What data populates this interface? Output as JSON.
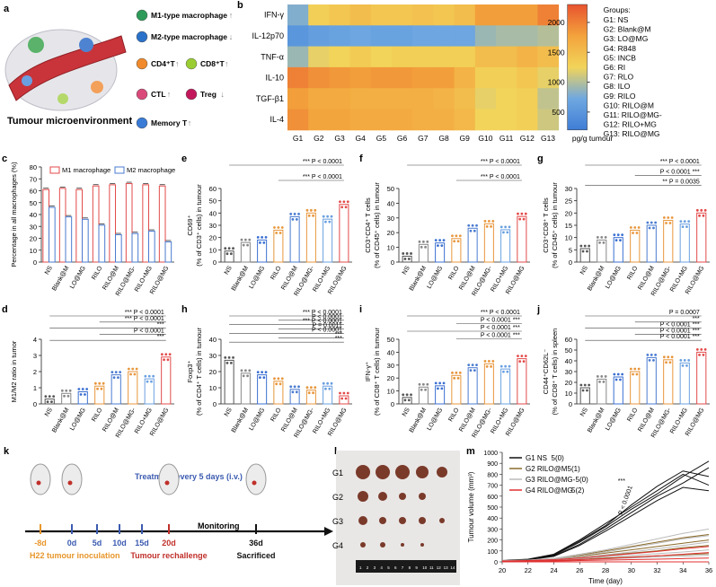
{
  "labels": {
    "a": "a",
    "b": "b",
    "c": "c",
    "d": "d",
    "e": "e",
    "f": "f",
    "g": "g",
    "h": "h",
    "i": "i",
    "j": "j",
    "k": "k",
    "l": "l",
    "m": "m"
  },
  "panel_a": {
    "title": "Tumour microenvironment",
    "cells": [
      {
        "name": "M1-type macrophage",
        "arrow": "up",
        "color": "#2e9b5a"
      },
      {
        "name": "M2-type macrophage",
        "arrow": "down",
        "color": "#2a72c9"
      },
      {
        "name": "CD4⁺T",
        "arrow": "up",
        "color": "#f08a2c"
      },
      {
        "name": "CD8⁺T",
        "arrow": "up",
        "color": "#9acd32"
      },
      {
        "name": "CTL",
        "arrow": "up",
        "color": "#d94a7a"
      },
      {
        "name": "Treg",
        "arrow": "down",
        "color": "#c2185b"
      },
      {
        "name": "Memory T",
        "arrow": "up",
        "color": "#3a7bd5"
      }
    ]
  },
  "chart_data": [
    {
      "id": "b",
      "type": "heatmap",
      "rows": [
        "IFN-γ",
        "IL-12p70",
        "TNF-α",
        "IL-10",
        "TGF-β1",
        "IL-4"
      ],
      "columns": [
        "G1",
        "G2",
        "G3",
        "G4",
        "G5",
        "G6",
        "G7",
        "G8",
        "G9",
        "G10",
        "G11",
        "G12",
        "G13"
      ],
      "values": [
        [
          800,
          1300,
          1400,
          1500,
          1400,
          1400,
          1450,
          1400,
          1500,
          1800,
          1800,
          1800,
          2000
        ],
        [
          500,
          600,
          650,
          700,
          650,
          650,
          700,
          700,
          700,
          900,
          950,
          950,
          1000
        ],
        [
          900,
          1200,
          1250,
          1350,
          1250,
          1300,
          1300,
          1300,
          1300,
          1500,
          1500,
          1600,
          1500
        ],
        [
          2000,
          1900,
          1850,
          1800,
          1850,
          1850,
          1800,
          1800,
          1600,
          1300,
          1300,
          1400,
          1200
        ],
        [
          1800,
          1700,
          1700,
          1650,
          1650,
          1650,
          1650,
          1600,
          1500,
          1200,
          1250,
          1300,
          1050
        ],
        [
          1900,
          1750,
          1750,
          1700,
          1700,
          1700,
          1650,
          1650,
          1550,
          1250,
          1250,
          1300,
          1100
        ]
      ],
      "colorbar": {
        "ticks": [
          "2000",
          "1500",
          "1000",
          "500"
        ],
        "label": "pg/g tumour",
        "min": 200,
        "max": 2300,
        "colors": [
          "#3f7dd6",
          "#6fa8e0",
          "#f2d45a",
          "#f3a33c",
          "#e8532f"
        ]
      },
      "legend_title": "Groups:",
      "legend": [
        "G1: NS",
        "G2: Blank@M",
        "G3: LO@MG",
        "G4: R848",
        "G5: INCB",
        "G6: RI",
        "G7: RLO",
        "G8: ILO",
        "G9: RILO",
        "G10: RILO@M",
        "G11: RILO@MG-",
        "G12: RILO+MG",
        "G13: RILO@MG"
      ]
    },
    {
      "id": "c",
      "type": "bar",
      "categories": [
        "NS",
        "Blank@M",
        "LO@MG",
        "RILO",
        "RILO@M",
        "RILO@MG-",
        "RILO+MG",
        "RILO@MG"
      ],
      "series": [
        {
          "name": "M1 macrophage",
          "color": "#e34a4a",
          "values": [
            61,
            62,
            61,
            64,
            65,
            66,
            65,
            64
          ]
        },
        {
          "name": "M2 macrophage",
          "color": "#4a7bd0",
          "values": [
            46,
            38,
            36,
            31,
            23,
            24,
            26,
            17
          ]
        }
      ],
      "ylabel": "Percentage in all macrophages (%)",
      "ylim": [
        0,
        80
      ],
      "yticks": [
        0,
        10,
        20,
        30,
        40,
        50,
        60,
        70,
        80
      ]
    },
    {
      "id": "d",
      "type": "bar",
      "categories": [
        "NS",
        "Blank@M",
        "LO@MG",
        "RILO",
        "RILO@M",
        "RILO@MG-",
        "RILO+MG",
        "RILO@MG"
      ],
      "values": [
        0.3,
        0.65,
        0.75,
        1.1,
        1.8,
        2.0,
        1.55,
        2.9
      ],
      "ylabel": "M1/M2 ratio in tumor",
      "ylim": [
        0,
        4
      ],
      "yticks": [
        0,
        1,
        2,
        3,
        4
      ],
      "annotations": [
        "***  P < 0.0001",
        "***  P < 0.0001",
        "***",
        "P < 0.0001",
        "***"
      ]
    },
    {
      "id": "e",
      "type": "bar",
      "categories": [
        "NS",
        "Blank@M",
        "LO@MG",
        "RILO",
        "RILO@M",
        "RILO@MG-",
        "RILO+MG",
        "RILO@MG"
      ],
      "values": [
        9,
        16,
        18,
        26,
        37,
        40,
        35,
        47
      ],
      "ylabel": "CD69⁺",
      "ylabel2": "(% of CD3⁺ cells) in tumour",
      "ylim": [
        0,
        60
      ],
      "yticks": [
        0,
        10,
        20,
        30,
        40,
        50,
        60
      ],
      "annotations": [
        "***  P < 0.0001",
        "***  P < 0.0001"
      ]
    },
    {
      "id": "f",
      "type": "bar",
      "categories": [
        "NS",
        "Blank@M",
        "LO@MG",
        "RILO",
        "RILO@M",
        "RILO@MG-",
        "RILO+MG",
        "RILO@MG"
      ],
      "values": [
        4,
        12,
        13,
        16,
        23,
        26,
        22,
        31
      ],
      "ylabel": "CD3⁺CD4⁺ T cells",
      "ylabel2": "(% of CD45⁺ cells) in tumour",
      "ylim": [
        0,
        50
      ],
      "yticks": [
        0,
        10,
        20,
        30,
        40,
        50
      ],
      "annotations": [
        "***  P < 0.0001",
        "***  P < 0.0001"
      ]
    },
    {
      "id": "g",
      "type": "bar",
      "categories": [
        "NS",
        "Blank@M",
        "LO@MG",
        "RILO",
        "RILO@M",
        "RILO@MG-",
        "RILO+MG",
        "RILO@MG"
      ],
      "values": [
        5.5,
        9,
        10,
        13,
        15,
        17,
        15.5,
        20
      ],
      "ylabel": "CD3⁺CD8⁺ T cells",
      "ylabel2": "(% of CD45⁺ cells) in tumour",
      "ylim": [
        0,
        30
      ],
      "yticks": [
        0,
        5,
        10,
        15,
        20,
        25,
        30
      ],
      "annotations": [
        "***  P < 0.0001",
        "P < 0.0001 ***",
        "**  P = 0.0035"
      ]
    },
    {
      "id": "h",
      "type": "bar",
      "categories": [
        "NS",
        "Blank@M",
        "LO@MG",
        "RILO",
        "RILO@M",
        "RILO@MG-",
        "RILO+MG",
        "RILO@MG"
      ],
      "values": [
        27,
        19,
        18,
        14,
        9,
        8.5,
        11,
        5
      ],
      "ylabel": "Foxp3⁺",
      "ylabel2": "(% of CD4⁺ T cells) in tumour",
      "ylim": [
        0,
        40
      ],
      "yticks": [
        0,
        10,
        20,
        30,
        40
      ],
      "annotations": [
        "***  P < 0.0001",
        "P < 0.0001",
        "***  P < 0.0001",
        "P = 0.0011",
        "P < 0.0001",
        "***",
        "***"
      ]
    },
    {
      "id": "i",
      "type": "bar",
      "categories": [
        "NS",
        "Blank@M",
        "LO@MG",
        "RILO",
        "RILO@M",
        "RILO@MG-",
        "RILO+MG",
        "RILO@MG"
      ],
      "values": [
        5,
        13,
        14,
        22,
        28,
        31,
        27,
        35
      ],
      "ylabel": "IFN-γ⁺",
      "ylabel2": "(% of CD8⁺ T cells) in tumour",
      "ylim": [
        0,
        50
      ],
      "yticks": [
        0,
        10,
        20,
        30,
        40,
        50
      ],
      "annotations": [
        "***  P < 0.0001",
        "P < 0.0001 ***",
        "P < 0.0001 ***",
        "P < 0.0001 ***"
      ]
    },
    {
      "id": "j",
      "type": "bar",
      "categories": [
        "NS",
        "Blank@M",
        "LO@MG",
        "RILO",
        "RILO@M",
        "RILO@MG-",
        "RILO+MG",
        "RILO@MG"
      ],
      "values": [
        15,
        23,
        25,
        30,
        43,
        41,
        38,
        48
      ],
      "ylabel": "CD44⁺CD62L⁻",
      "ylabel2": "(% of CD8⁺ T cells) in spleen",
      "ylim": [
        0,
        60
      ],
      "yticks": [
        0,
        10,
        20,
        30,
        40,
        50,
        60
      ],
      "annotations": [
        "P = 0.0007",
        "***",
        "P < 0.0001 ***",
        "P < 0.0001 ***",
        "P < 0.0001 ***"
      ]
    },
    {
      "id": "m",
      "type": "line",
      "x": [
        20,
        22,
        24,
        26,
        28,
        30,
        32,
        34,
        36
      ],
      "series": [
        {
          "name": "G1 NS",
          "cured": "5(0)",
          "color": "#111111",
          "lines": [
            [
              10,
              20,
              60,
              180,
              320,
              480,
              620,
              780,
              920
            ],
            [
              10,
              22,
              55,
              160,
              300,
              450,
              600,
              720,
              860
            ],
            [
              12,
              25,
              70,
              200,
              350,
              500,
              650,
              800,
              700
            ],
            [
              10,
              18,
              50,
              150,
              280,
              420,
              560,
              680,
              650
            ],
            [
              10,
              20,
              65,
              190,
              330,
              520,
              690,
              830,
              780
            ]
          ]
        },
        {
          "name": "G2 RILO@M",
          "cured": "5(1)",
          "color": "#8a6a2a",
          "lines": [
            [
              10,
              15,
              30,
              60,
              100,
              140,
              180,
              220,
              250
            ],
            [
              10,
              15,
              25,
              50,
              80,
              110,
              140,
              170,
              200
            ],
            [
              8,
              12,
              20,
              40,
              60,
              80,
              100,
              130,
              150
            ],
            [
              8,
              10,
              15,
              25,
              35,
              45,
              55,
              65,
              75
            ],
            [
              0,
              0,
              0,
              0,
              0,
              0,
              0,
              0,
              0
            ]
          ]
        },
        {
          "name": "G3 RILO@MG-",
          "cured": "5(0)",
          "color": "#bbbbbb",
          "lines": [
            [
              10,
              16,
              32,
              70,
              110,
              160,
              210,
              260,
              300
            ],
            [
              10,
              14,
              28,
              55,
              90,
              130,
              170,
              210,
              240
            ],
            [
              8,
              12,
              22,
              40,
              65,
              90,
              120,
              150,
              180
            ],
            [
              8,
              10,
              18,
              30,
              45,
              60,
              75,
              90,
              110
            ],
            [
              6,
              8,
              12,
              20,
              28,
              36,
              44,
              52,
              60
            ]
          ]
        },
        {
          "name": "G4 RILO@MG",
          "cured": "5(2)",
          "color": "#e03030",
          "lines": [
            [
              8,
              12,
              20,
              35,
              55,
              75,
              95,
              120,
              140
            ],
            [
              6,
              8,
              12,
              20,
              30,
              42,
              55,
              70,
              85
            ],
            [
              5,
              6,
              8,
              12,
              16,
              20,
              25,
              30,
              35
            ],
            [
              0,
              0,
              0,
              0,
              0,
              0,
              0,
              0,
              0
            ],
            [
              0,
              0,
              0,
              0,
              0,
              0,
              0,
              0,
              0
            ]
          ]
        }
      ],
      "xlabel": "Time (day)",
      "ylabel": "Tumour volume (mm³)",
      "xlim": [
        20,
        36
      ],
      "ylim": [
        0,
        1000
      ],
      "xticks": [
        20,
        22,
        24,
        26,
        28,
        30,
        32,
        34,
        36
      ],
      "yticks": [
        0,
        100,
        200,
        300,
        400,
        500,
        600,
        700,
        800,
        900,
        1000
      ],
      "annotations": [
        "***",
        "P < 0.0001"
      ]
    }
  ],
  "panel_k": {
    "events": [
      {
        "day": "-8d",
        "label": "H22 tumour inoculation",
        "color": "#e8962b"
      },
      {
        "day": "0d",
        "label": "",
        "color": "#3b5bb0"
      },
      {
        "day": "5d",
        "label": "",
        "color": "#3b5bb0"
      },
      {
        "day": "10d",
        "label": "",
        "color": "#3b5bb0"
      },
      {
        "day": "15d",
        "label": "",
        "color": "#3b5bb0"
      },
      {
        "day": "20d",
        "label": "Tumour rechallenge",
        "color": "#c0302a"
      },
      {
        "day": "36d",
        "label": "Sacrificed",
        "color": "#111111"
      }
    ],
    "treatment": "Treatment every 5 days (i.v.)",
    "monitoring": "Monitoring"
  },
  "panel_l": {
    "groups": [
      "G1",
      "G2",
      "G3",
      "G4"
    ],
    "ruler": [
      "1",
      "2",
      "3",
      "4",
      "5",
      "6",
      "7",
      "8",
      "9",
      "10",
      "11",
      "12",
      "13",
      "14"
    ]
  }
}
